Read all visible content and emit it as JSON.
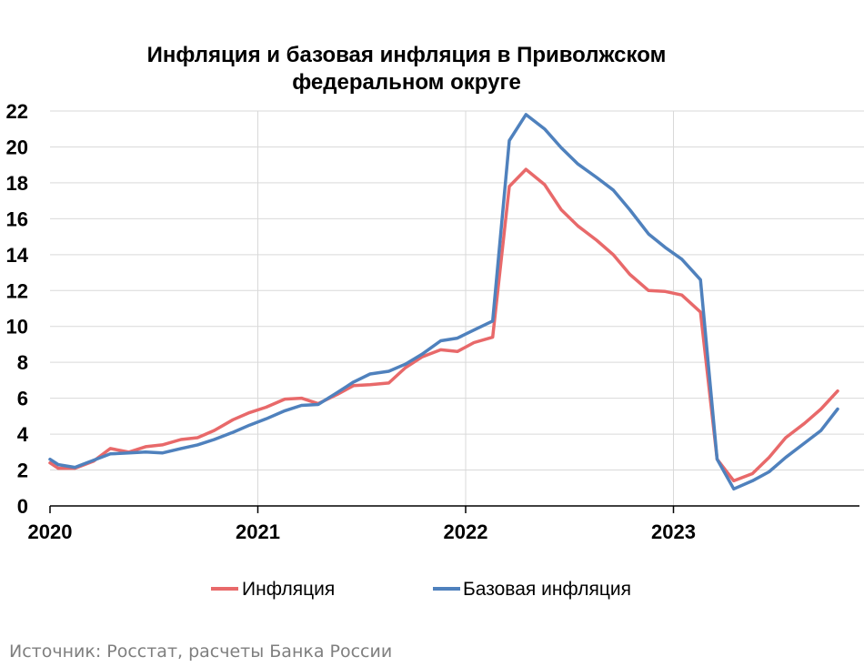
{
  "chart_data": {
    "type": "line",
    "title_lines": [
      "Инфляция и базовая инфляция в Приволжском",
      "федеральном округе"
    ],
    "ylim": [
      0,
      22
    ],
    "yticks": [
      0,
      2,
      4,
      6,
      8,
      10,
      12,
      14,
      16,
      18,
      20,
      22
    ],
    "xlim": [
      2020,
      2024
    ],
    "xticks": [
      {
        "value": 2020,
        "label": "2020"
      },
      {
        "value": 2021,
        "label": "2021"
      },
      {
        "value": 2022,
        "label": "2022"
      },
      {
        "value": 2023,
        "label": "2023"
      }
    ],
    "grid": true,
    "legend_position": "bottom",
    "series": [
      {
        "name": "Инфляция",
        "color": "#e8696a",
        "points": [
          [
            2020.0,
            2.4
          ],
          [
            2020.04,
            2.1
          ],
          [
            2020.12,
            2.1
          ],
          [
            2020.21,
            2.5
          ],
          [
            2020.29,
            3.2
          ],
          [
            2020.38,
            3.0
          ],
          [
            2020.46,
            3.3
          ],
          [
            2020.54,
            3.4
          ],
          [
            2020.63,
            3.7
          ],
          [
            2020.71,
            3.8
          ],
          [
            2020.79,
            4.2
          ],
          [
            2020.88,
            4.8
          ],
          [
            2020.96,
            5.2
          ],
          [
            2021.04,
            5.5
          ],
          [
            2021.13,
            5.95
          ],
          [
            2021.21,
            6.0
          ],
          [
            2021.29,
            5.7
          ],
          [
            2021.38,
            6.2
          ],
          [
            2021.46,
            6.7
          ],
          [
            2021.54,
            6.75
          ],
          [
            2021.63,
            6.85
          ],
          [
            2021.71,
            7.7
          ],
          [
            2021.79,
            8.3
          ],
          [
            2021.88,
            8.7
          ],
          [
            2021.96,
            8.6
          ],
          [
            2022.04,
            9.1
          ],
          [
            2022.13,
            9.4
          ],
          [
            2022.21,
            17.8
          ],
          [
            2022.29,
            18.75
          ],
          [
            2022.38,
            17.9
          ],
          [
            2022.46,
            16.5
          ],
          [
            2022.54,
            15.6
          ],
          [
            2022.63,
            14.8
          ],
          [
            2022.71,
            14.0
          ],
          [
            2022.79,
            12.9
          ],
          [
            2022.88,
            12.0
          ],
          [
            2022.96,
            11.95
          ],
          [
            2023.04,
            11.75
          ],
          [
            2023.13,
            10.8
          ],
          [
            2023.21,
            2.6
          ],
          [
            2023.29,
            1.4
          ],
          [
            2023.38,
            1.8
          ],
          [
            2023.46,
            2.7
          ],
          [
            2023.54,
            3.8
          ],
          [
            2023.63,
            4.6
          ],
          [
            2023.71,
            5.4
          ],
          [
            2023.79,
            6.4
          ]
        ]
      },
      {
        "name": "Базовая инфляция",
        "color": "#4f81bd",
        "points": [
          [
            2020.0,
            2.6
          ],
          [
            2020.04,
            2.3
          ],
          [
            2020.12,
            2.15
          ],
          [
            2020.21,
            2.55
          ],
          [
            2020.29,
            2.9
          ],
          [
            2020.38,
            2.95
          ],
          [
            2020.46,
            3.0
          ],
          [
            2020.54,
            2.95
          ],
          [
            2020.63,
            3.2
          ],
          [
            2020.71,
            3.4
          ],
          [
            2020.79,
            3.7
          ],
          [
            2020.88,
            4.1
          ],
          [
            2020.96,
            4.5
          ],
          [
            2021.04,
            4.85
          ],
          [
            2021.13,
            5.3
          ],
          [
            2021.21,
            5.6
          ],
          [
            2021.29,
            5.65
          ],
          [
            2021.38,
            6.3
          ],
          [
            2021.46,
            6.9
          ],
          [
            2021.54,
            7.35
          ],
          [
            2021.63,
            7.5
          ],
          [
            2021.71,
            7.9
          ],
          [
            2021.79,
            8.45
          ],
          [
            2021.88,
            9.2
          ],
          [
            2021.96,
            9.35
          ],
          [
            2022.04,
            9.8
          ],
          [
            2022.13,
            10.3
          ],
          [
            2022.21,
            20.35
          ],
          [
            2022.29,
            21.8
          ],
          [
            2022.38,
            21.0
          ],
          [
            2022.46,
            19.95
          ],
          [
            2022.54,
            19.05
          ],
          [
            2022.63,
            18.3
          ],
          [
            2022.71,
            17.6
          ],
          [
            2022.79,
            16.5
          ],
          [
            2022.88,
            15.15
          ],
          [
            2022.96,
            14.4
          ],
          [
            2023.04,
            13.75
          ],
          [
            2023.13,
            12.6
          ],
          [
            2023.21,
            2.6
          ],
          [
            2023.29,
            0.95
          ],
          [
            2023.38,
            1.4
          ],
          [
            2023.46,
            1.9
          ],
          [
            2023.54,
            2.7
          ],
          [
            2023.63,
            3.5
          ],
          [
            2023.71,
            4.2
          ],
          [
            2023.79,
            5.4
          ]
        ]
      }
    ],
    "source": "Источник: Росстат, расчеты Банка России"
  }
}
